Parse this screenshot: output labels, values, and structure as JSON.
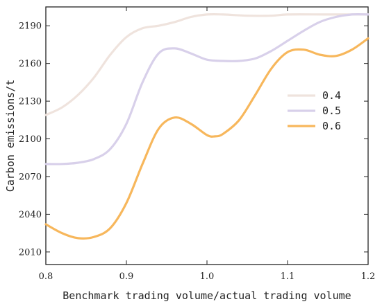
{
  "chart_data": {
    "type": "line",
    "xlabel": "Benchmark trading volume/actual trading volume",
    "ylabel": "Carbon emissions/t",
    "xlim": [
      0.8,
      1.2
    ],
    "ylim": [
      2000,
      2205
    ],
    "xticks": [
      "0.8",
      "0.9",
      "1.0",
      "1.1",
      "1.2"
    ],
    "yticks": [
      "2010",
      "2040",
      "2070",
      "2100",
      "2130",
      "2160",
      "2190"
    ],
    "legend_position": "right-middle",
    "series": [
      {
        "name": "0.4",
        "color": "#efe3dd",
        "x": [
          0.8,
          0.82,
          0.84,
          0.86,
          0.88,
          0.9,
          0.92,
          0.94,
          0.96,
          0.98,
          1.0,
          1.02,
          1.05,
          1.08,
          1.1,
          1.15,
          1.2
        ],
        "y": [
          2119,
          2125,
          2135,
          2149,
          2167,
          2181,
          2188,
          2190,
          2193,
          2197,
          2199,
          2199,
          2198,
          2198,
          2199,
          2199,
          2199
        ]
      },
      {
        "name": "0.5",
        "color": "#d8d0ea",
        "x": [
          0.8,
          0.82,
          0.84,
          0.86,
          0.88,
          0.9,
          0.92,
          0.94,
          0.96,
          0.98,
          1.0,
          1.02,
          1.04,
          1.06,
          1.08,
          1.1,
          1.12,
          1.14,
          1.16,
          1.18,
          1.2
        ],
        "y": [
          2080,
          2080,
          2081,
          2084,
          2092,
          2112,
          2145,
          2168,
          2172,
          2168,
          2163,
          2162,
          2162,
          2164,
          2170,
          2178,
          2186,
          2193,
          2197,
          2199,
          2199
        ]
      },
      {
        "name": "0.6",
        "color": "#f7b75c",
        "x": [
          0.8,
          0.82,
          0.84,
          0.86,
          0.88,
          0.9,
          0.92,
          0.94,
          0.96,
          0.98,
          1.0,
          1.01,
          1.02,
          1.04,
          1.06,
          1.08,
          1.1,
          1.12,
          1.14,
          1.16,
          1.18,
          1.2
        ],
        "y": [
          2032,
          2025,
          2021,
          2022,
          2029,
          2049,
          2080,
          2108,
          2117,
          2112,
          2103,
          2102,
          2104,
          2115,
          2135,
          2156,
          2169,
          2171,
          2167,
          2166,
          2171,
          2180
        ]
      }
    ]
  }
}
